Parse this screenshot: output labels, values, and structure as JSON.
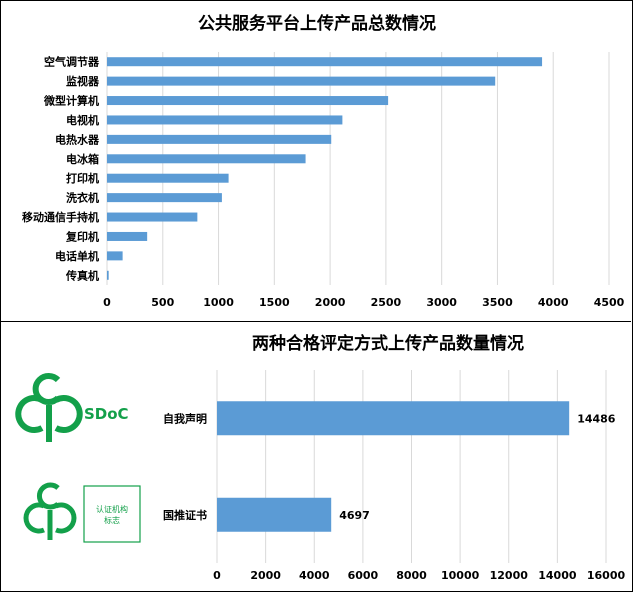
{
  "chart_data": [
    {
      "type": "bar",
      "orientation": "horizontal",
      "title": "公共服务平台上传产品总数情况",
      "categories": [
        "空气调节器",
        "监视器",
        "微型计算机",
        "电视机",
        "电热水器",
        "电冰箱",
        "打印机",
        "洗衣机",
        "移动通信手持机",
        "复印机",
        "电话单机",
        "传真机"
      ],
      "values": [
        3900,
        3480,
        2520,
        2110,
        2010,
        1780,
        1090,
        1030,
        810,
        360,
        140,
        15
      ],
      "xlim": [
        0,
        4500
      ],
      "ticks": [
        0,
        500,
        1000,
        1500,
        2000,
        2500,
        3000,
        3500,
        4000,
        4500
      ],
      "tick_labels": [
        "0",
        "500",
        "1000",
        "1500",
        "2000",
        "2500",
        "3000",
        "3500",
        "4000",
        "4500"
      ],
      "grid": true,
      "bar_color": "#5b9bd5"
    },
    {
      "type": "bar",
      "orientation": "horizontal",
      "title": "两种合格评定方式上传产品数量情况",
      "categories": [
        "自我声明",
        "国推证书"
      ],
      "values": [
        14486,
        4697
      ],
      "data_labels": [
        "14486",
        "4697"
      ],
      "xlim": [
        0,
        16000
      ],
      "ticks": [
        0,
        2000,
        4000,
        6000,
        8000,
        10000,
        12000,
        14000,
        16000
      ],
      "tick_labels": [
        "0",
        "2000",
        "4000",
        "6000",
        "8000",
        "10000",
        "12000",
        "14000",
        "16000"
      ],
      "grid": true,
      "bar_color": "#5b9bd5"
    }
  ],
  "logos": {
    "sdoc_text": "SDoC",
    "cert_text_line1": "认证机构",
    "cert_text_line2": "标志",
    "logo_color": "#13a04a"
  }
}
